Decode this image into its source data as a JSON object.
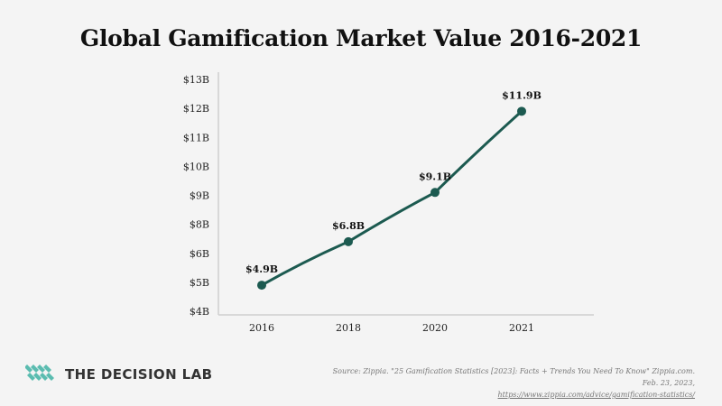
{
  "chart_data": {
    "type": "line",
    "title": "Global Gamification Market Value 2016-2021",
    "xlabel": "",
    "ylabel": "",
    "categories": [
      "2016",
      "2018",
      "2020",
      "2021"
    ],
    "series": [
      {
        "values": [
          4.9,
          6.8,
          9.1,
          11.9
        ],
        "color": "#1c5a50"
      }
    ],
    "data_labels": [
      "$4.9B",
      "$6.8B",
      "$9.1B",
      "$11.9B"
    ],
    "y_ticks": [
      4,
      5,
      6,
      8,
      9,
      10,
      11,
      12,
      13
    ],
    "y_tick_labels": [
      "$4B",
      "$5B",
      "$6B",
      "$8B",
      "$9B",
      "$10B",
      "$11B",
      "$12B",
      "$13B"
    ],
    "ylim": [
      4,
      13
    ],
    "grid": false,
    "legend": "none"
  },
  "brand": {
    "name": "THE DECISION LAB",
    "logo_icon": "decision-lab-logo-icon",
    "color": "#5bbcb0"
  },
  "source": {
    "text": "Source: Zippia. \"25 Gamification Statistics [2023]: Facts + Trends You Need To Know\" Zippia.com. Feb. 23, 2023,",
    "url": "https://www.zippia.com/advice/gamification-statistics/"
  }
}
